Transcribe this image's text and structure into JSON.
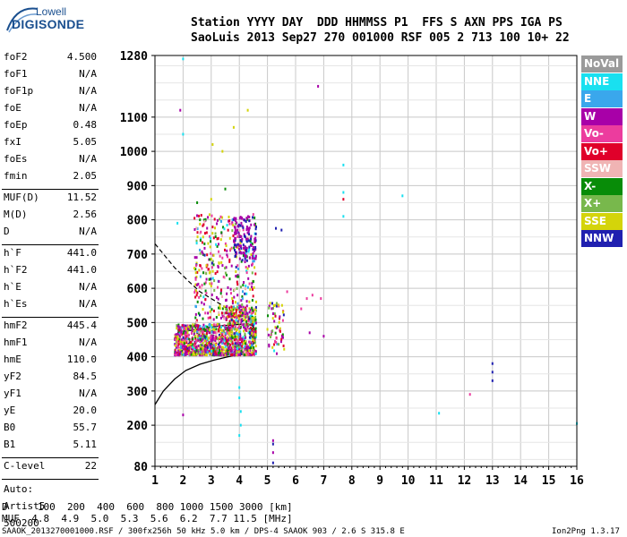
{
  "logo": {
    "line1": "Lowell",
    "line2": "DIGISONDE"
  },
  "header": {
    "line1": "Station YYYY DAY  DDD HHMMSS P1  FFS S AXN PPS IGA PS",
    "line2": "SaoLuis 2013 Sep27 270 001000 RSF 005 2 713 100 10+ 22"
  },
  "params_group1": [
    {
      "k": "foF2",
      "v": "4.500"
    },
    {
      "k": "foF1",
      "v": "N/A"
    },
    {
      "k": "foF1p",
      "v": "N/A"
    },
    {
      "k": "foE",
      "v": "N/A"
    },
    {
      "k": "foEp",
      "v": "0.48"
    },
    {
      "k": "fxI",
      "v": "5.05"
    },
    {
      "k": "foEs",
      "v": "N/A"
    },
    {
      "k": "fmin",
      "v": "2.05"
    }
  ],
  "params_group2": [
    {
      "k": "MUF(D)",
      "v": "11.52"
    },
    {
      "k": "M(D)",
      "v": "2.56"
    },
    {
      "k": "D",
      "v": "N/A"
    }
  ],
  "params_group3": [
    {
      "k": "h`F",
      "v": "441.0"
    },
    {
      "k": "h`F2",
      "v": "441.0"
    },
    {
      "k": "h`E",
      "v": "N/A"
    },
    {
      "k": "h`Es",
      "v": "N/A"
    }
  ],
  "params_group4": [
    {
      "k": "hmF2",
      "v": "445.4"
    },
    {
      "k": "hmF1",
      "v": "N/A"
    },
    {
      "k": "hmE",
      "v": "110.0"
    },
    {
      "k": "yF2",
      "v": "84.5"
    },
    {
      "k": "yF1",
      "v": "N/A"
    },
    {
      "k": "yE",
      "v": "20.0"
    },
    {
      "k": "B0",
      "v": "55.7"
    },
    {
      "k": "B1",
      "v": "5.11"
    }
  ],
  "params_group5": [
    {
      "k": "C-level",
      "v": "22"
    }
  ],
  "auto_block": {
    "line1": "Auto:",
    "line2": "Artist5",
    "line3": "500200"
  },
  "legend": [
    {
      "label": "NoVal",
      "color": "#9a9a9a"
    },
    {
      "label": "NNE",
      "color": "#19e0f0"
    },
    {
      "label": "E",
      "color": "#3aa7ec"
    },
    {
      "label": "W",
      "color": "#a800a8"
    },
    {
      "label": "Vo-",
      "color": "#ec3c9e"
    },
    {
      "label": "Vo+",
      "color": "#e0002a"
    },
    {
      "label": "SSW",
      "color": "#f0b4b4"
    },
    {
      "label": "X-",
      "color": "#088c08"
    },
    {
      "label": "X+",
      "color": "#78b84c"
    },
    {
      "label": "SSE",
      "color": "#d4d40a"
    },
    {
      "label": "NNW",
      "color": "#2020b0"
    }
  ],
  "chart_data": {
    "type": "scatter",
    "title": "",
    "xlabel": "",
    "ylabel": "",
    "xlim": [
      1,
      16
    ],
    "ylim": [
      80,
      1280
    ],
    "x_ticks": [
      "1",
      "2",
      "3",
      "4",
      "5",
      "6",
      "7",
      "8",
      "9",
      "10",
      "11",
      "12",
      "13",
      "14",
      "15",
      "16"
    ],
    "y_ticks": [
      "80",
      "200",
      "300",
      "400",
      "500",
      "600",
      "700",
      "800",
      "900",
      "1000",
      "1100",
      "1280"
    ],
    "grid": true,
    "series": [
      {
        "name": "NNE",
        "color": "#19e0f0",
        "points": [
          [
            2.0,
            1270
          ],
          [
            2.0,
            1050
          ],
          [
            4.0,
            310
          ],
          [
            4.0,
            280
          ],
          [
            4.05,
            240
          ],
          [
            4.05,
            200
          ],
          [
            4.0,
            170
          ],
          [
            7.7,
            960
          ],
          [
            7.7,
            880
          ],
          [
            7.7,
            810
          ],
          [
            9.8,
            870
          ],
          [
            11.1,
            235
          ],
          [
            16.0,
            205
          ],
          [
            1.8,
            790
          ]
        ]
      },
      {
        "name": "W",
        "color": "#a800a8",
        "points": [
          [
            1.9,
            1120
          ],
          [
            2.0,
            230
          ],
          [
            5.2,
            155
          ],
          [
            5.2,
            120
          ],
          [
            6.5,
            470
          ],
          [
            7.0,
            460
          ],
          [
            6.8,
            1190
          ]
        ]
      },
      {
        "name": "Vo+",
        "color": "#e0002a",
        "points": [
          [
            7.7,
            860
          ],
          [
            2.1,
            465
          ],
          [
            2.5,
            470
          ]
        ]
      },
      {
        "name": "SSE",
        "color": "#d4d40a",
        "points": [
          [
            3.05,
            1020
          ],
          [
            3.8,
            1070
          ],
          [
            4.3,
            1120
          ],
          [
            3.0,
            860
          ],
          [
            3.4,
            1000
          ],
          [
            5.0,
            480
          ],
          [
            4.6,
            560
          ]
        ]
      },
      {
        "name": "Vo-",
        "color": "#ec3c9e",
        "points": [
          [
            12.2,
            290
          ],
          [
            6.4,
            570
          ],
          [
            6.6,
            580
          ],
          [
            6.9,
            570
          ],
          [
            5.7,
            590
          ],
          [
            6.2,
            540
          ]
        ]
      },
      {
        "name": "NNW",
        "color": "#2020b0",
        "points": [
          [
            13.0,
            380
          ],
          [
            13.0,
            355
          ],
          [
            13.0,
            330
          ],
          [
            5.2,
            145
          ],
          [
            5.2,
            90
          ],
          [
            5.5,
            770
          ],
          [
            5.3,
            775
          ]
        ]
      },
      {
        "name": "X-",
        "color": "#088c08",
        "points": [
          [
            2.6,
            800
          ],
          [
            3.5,
            890
          ],
          [
            2.5,
            850
          ]
        ]
      }
    ],
    "profile_solid": [
      [
        1.0,
        260
      ],
      [
        1.3,
        300
      ],
      [
        1.7,
        335
      ],
      [
        2.1,
        360
      ],
      [
        2.6,
        378
      ],
      [
        3.1,
        390
      ],
      [
        3.6,
        400
      ],
      [
        4.0,
        407
      ],
      [
        4.3,
        416
      ],
      [
        4.45,
        430
      ],
      [
        4.55,
        445
      ],
      [
        4.6,
        460
      ],
      [
        4.58,
        478
      ],
      [
        4.45,
        492
      ],
      [
        4.2,
        496
      ],
      [
        3.8,
        493
      ],
      [
        3.3,
        490
      ],
      [
        2.8,
        484
      ],
      [
        2.2,
        476
      ],
      [
        1.8,
        470
      ]
    ],
    "profile_dashed": [
      [
        1.0,
        730
      ],
      [
        1.3,
        700
      ],
      [
        1.7,
        660
      ],
      [
        2.2,
        620
      ],
      [
        2.6,
        590
      ],
      [
        3.0,
        570
      ],
      [
        3.3,
        555
      ],
      [
        3.7,
        535
      ],
      [
        4.0,
        515
      ],
      [
        4.3,
        495
      ],
      [
        4.5,
        470
      ]
    ]
  },
  "mufs": {
    "d_label": "D",
    "d_values": "   100  200  400  600  800 1000 1500 3000 [km]",
    "muf_label": "MUF",
    "muf_values": "  4.8  4.9  5.0  5.3  5.6  6.2  7.7 11.5 [MHz]"
  },
  "footer": {
    "left": "SAAOK_2013270001000.RSF / 300fx256h 50 kHz 5.0 km / DPS-4 SAAOK 903 / 2.6 S 315.8 E",
    "right": "Ion2Png 1.3.17"
  }
}
